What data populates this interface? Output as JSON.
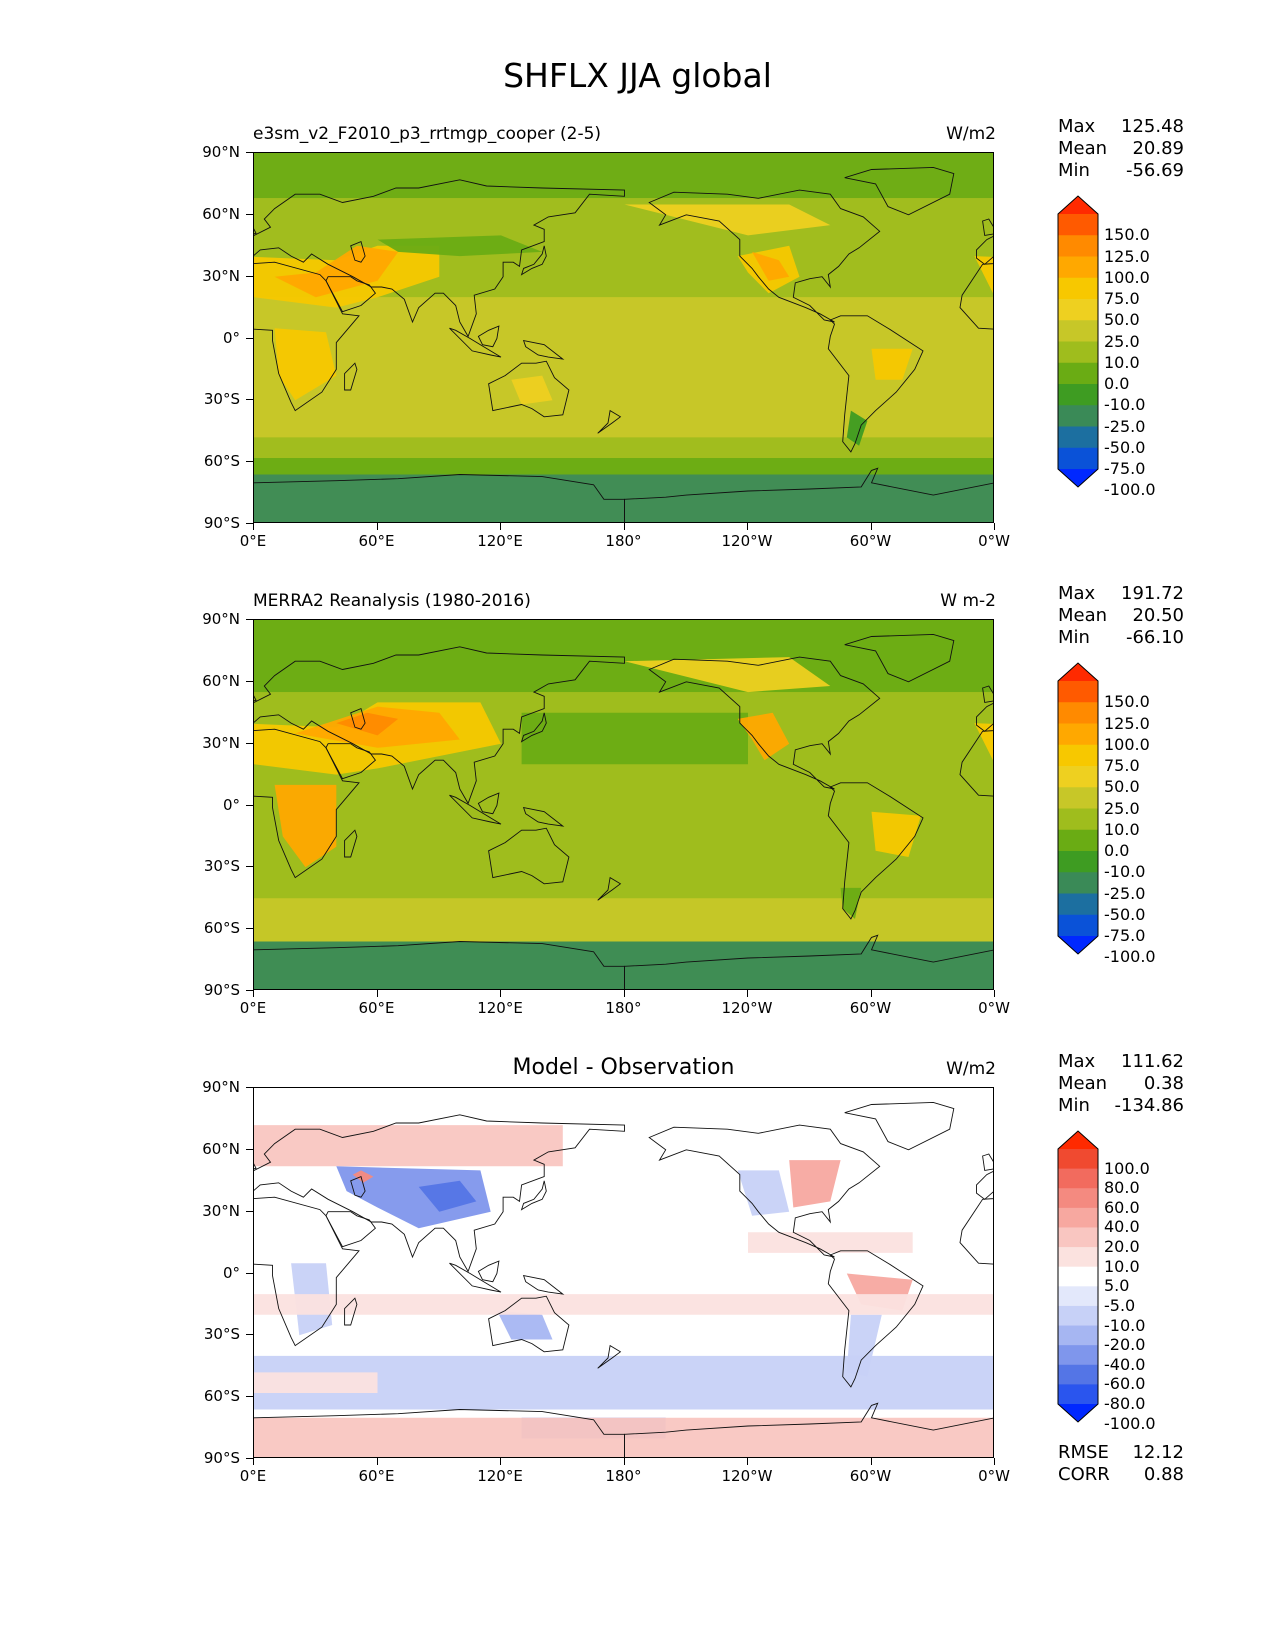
{
  "title": "SHFLX JJA global",
  "axes": {
    "lat_labels": [
      "90°N",
      "60°N",
      "30°N",
      "0°",
      "30°S",
      "60°S",
      "90°S"
    ],
    "lon_labels": [
      "0°E",
      "60°E",
      "120°E",
      "180°",
      "120°W",
      "60°W",
      "0°W"
    ]
  },
  "panels": [
    {
      "name": "model",
      "title": "e3sm_v2_F2010_p3_rrtmgp_cooper (2-5)",
      "units": "W/m2",
      "stats": {
        "max_label": "Max",
        "max": "125.48",
        "mean_label": "Mean",
        "mean": "20.89",
        "min_label": "Min",
        "min": "-56.69"
      },
      "colorbar_labels": [
        "150.0",
        "125.0",
        "100.0",
        "75.0",
        "50.0",
        "25.0",
        "10.0",
        "0.0",
        "-10.0",
        "-25.0",
        "-50.0",
        "-75.0",
        "-100.0"
      ]
    },
    {
      "name": "obs",
      "title": "MERRA2 Reanalysis (1980-2016)",
      "units": "W m-2",
      "stats": {
        "max_label": "Max",
        "max": "191.72",
        "mean_label": "Mean",
        "mean": "20.50",
        "min_label": "Min",
        "min": "-66.10"
      },
      "colorbar_labels": [
        "150.0",
        "125.0",
        "100.0",
        "75.0",
        "50.0",
        "25.0",
        "10.0",
        "0.0",
        "-10.0",
        "-25.0",
        "-50.0",
        "-75.0",
        "-100.0"
      ]
    },
    {
      "name": "diff",
      "title": "Model - Observation",
      "units": "W/m2",
      "stats": {
        "max_label": "Max",
        "max": "111.62",
        "mean_label": "Mean",
        "mean": "0.38",
        "min_label": "Min",
        "min": "-134.86"
      },
      "colorbar_labels": [
        "100.0",
        "80.0",
        "60.0",
        "40.0",
        "20.0",
        "10.0",
        "5.0",
        "-5.0",
        "-10.0",
        "-20.0",
        "-40.0",
        "-60.0",
        "-80.0",
        "-100.0"
      ],
      "error_stats": {
        "rmse_label": "RMSE",
        "rmse": "12.12",
        "corr_label": "CORR",
        "corr": "0.88"
      }
    }
  ],
  "colors": {
    "field_scale": [
      "#ff2a00",
      "#ff5a00",
      "#ff8a00",
      "#ffa800",
      "#f7c800",
      "#eed020",
      "#c7c728",
      "#9fbd1d",
      "#6aac14",
      "#3e9c22",
      "#3a8a57",
      "#1c6fa0",
      "#0a52d8",
      "#0028ff"
    ],
    "diff_scale": [
      "#ff2a00",
      "#f04a30",
      "#f26b5e",
      "#f48a80",
      "#f7a8a0",
      "#f9c6c1",
      "#fbe2df",
      "#ffffff",
      "#e3e8fb",
      "#c7d1f7",
      "#a6b6f2",
      "#7f96ec",
      "#5475e6",
      "#2a55ee",
      "#0028ff"
    ]
  }
}
